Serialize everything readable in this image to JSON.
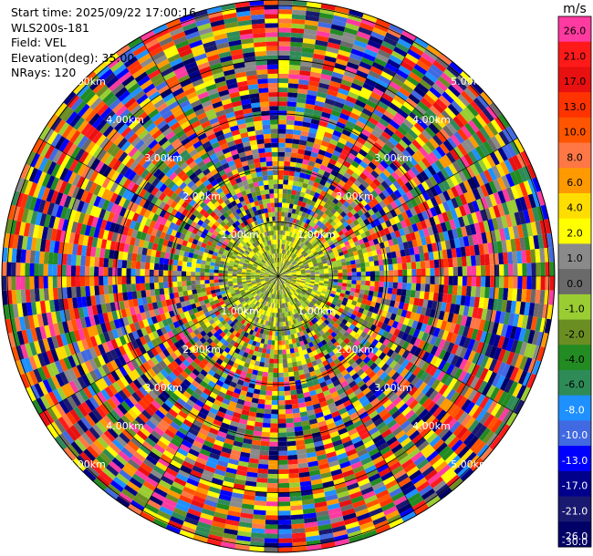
{
  "info": {
    "start_time": "Start time: 2025/09/22 17:00:16",
    "instrument": "WLS200s-181",
    "field": "Field: VEL",
    "elevation": "Elevation(deg): 35.00",
    "nrays": "NRays: 120"
  },
  "colorbar": {
    "unit": "m/s",
    "ticks": [
      "26.0",
      "21.0",
      "17.0",
      "13.0",
      "10.0",
      "8.0",
      "6.0",
      "4.0",
      "2.0",
      "1.0",
      "0.0",
      "-1.0",
      "-2.0",
      "-4.0",
      "-6.0",
      "-8.0",
      "-10.0",
      "-13.0",
      "-17.0",
      "-21.0",
      "-26.0",
      "-30.0"
    ],
    "colors": [
      "#ff3aa0",
      "#ff1a1a",
      "#e81010",
      "#ff3300",
      "#ff5500",
      "#ff7744",
      "#ff9900",
      "#ffdd00",
      "#ffff00",
      "#8a8a8a",
      "#6a6a6a",
      "#9acd32",
      "#6b8e23",
      "#228b22",
      "#2e8b57",
      "#1e90ff",
      "#4169e1",
      "#0000ff",
      "#00008b",
      "#191970",
      "#000066"
    ]
  },
  "rings": [
    {
      "label": "1.00km"
    },
    {
      "label": "2.00km"
    },
    {
      "label": "3.00km"
    },
    {
      "label": "4.00km"
    },
    {
      "label": "5.00km"
    }
  ],
  "ppi": {
    "nrays": 120
  }
}
